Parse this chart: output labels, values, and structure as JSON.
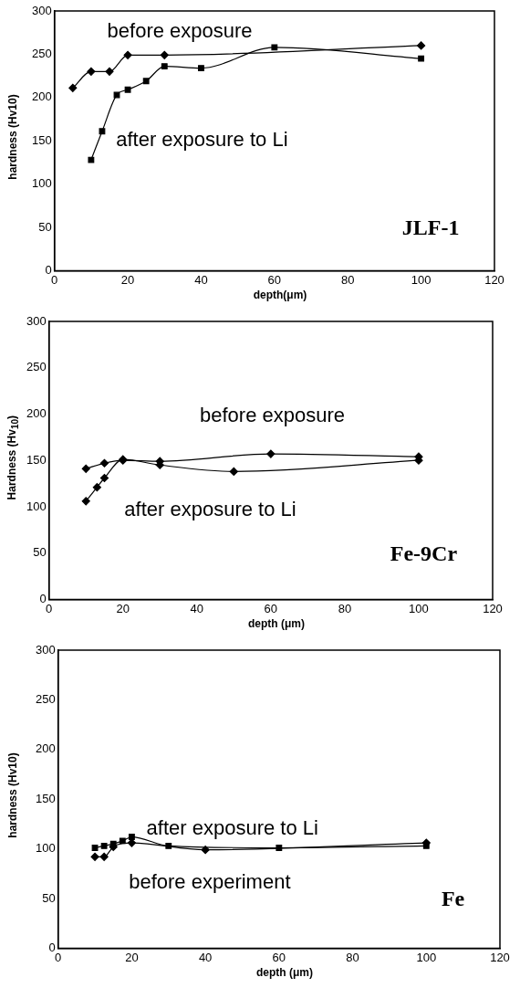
{
  "chart_data": [
    {
      "type": "line",
      "xlabel": "depth(μm)",
      "ylabel": "hardness (Hv10)",
      "xlim": [
        0,
        120
      ],
      "xticks": [
        0,
        20,
        40,
        60,
        80,
        100,
        120
      ],
      "ylim": [
        0,
        300
      ],
      "yticks": [
        0,
        50,
        100,
        150,
        200,
        250,
        300
      ],
      "grid": false,
      "legend": false,
      "annotations": [
        "JLF-1"
      ],
      "series": [
        {
          "name": "before exposure",
          "color": "#000000",
          "marker": "diamond",
          "x": [
            5,
            10,
            15,
            20,
            30,
            60,
            100
          ],
          "values": [
            211,
            230,
            230,
            249,
            249,
            null,
            260
          ]
        },
        {
          "name": "after exposure to Li",
          "color": "#000000",
          "marker": "square",
          "x": [
            10,
            13,
            17,
            20,
            25,
            30,
            40,
            60,
            100
          ],
          "values": [
            128,
            161,
            203,
            209,
            219,
            236,
            234,
            258,
            245
          ]
        }
      ]
    },
    {
      "type": "line",
      "xlabel": "depth (μm)",
      "ylabel": "Hardness (Hv$_{10}$)",
      "xlim": [
        0,
        120
      ],
      "xticks": [
        0,
        20,
        40,
        60,
        80,
        100,
        120
      ],
      "ylim": [
        0,
        300
      ],
      "yticks": [
        0,
        50,
        100,
        150,
        200,
        250,
        300
      ],
      "grid": false,
      "legend": false,
      "annotations": [
        "Fe-9Cr"
      ],
      "series": [
        {
          "name": "before exposure",
          "color": "#000000",
          "marker": "diamond",
          "x": [
            10,
            15,
            20,
            30,
            60,
            100
          ],
          "values": [
            141,
            147,
            150,
            149,
            157,
            154
          ]
        },
        {
          "name": "after exposure to Li",
          "color": "#000000",
          "marker": "diamond",
          "x": [
            10,
            13,
            15,
            20,
            30,
            50,
            100
          ],
          "values": [
            106,
            121,
            131,
            151,
            145,
            138,
            150
          ]
        }
      ]
    },
    {
      "type": "line",
      "xlabel": "depth (μm)",
      "ylabel": "hardness (Hv10)",
      "xlim": [
        0,
        120
      ],
      "xticks": [
        0,
        20,
        40,
        60,
        80,
        100,
        120
      ],
      "ylim": [
        0,
        300
      ],
      "yticks": [
        0,
        50,
        100,
        150,
        200,
        250,
        300
      ],
      "grid": false,
      "legend": false,
      "annotations": [
        "Fe"
      ],
      "series": [
        {
          "name": "after exposure to Li",
          "color": "#000000",
          "marker": "square",
          "x": [
            10,
            12.5,
            15,
            17.5,
            20,
            30,
            60,
            100
          ],
          "values": [
            101,
            103,
            105,
            108,
            112,
            103,
            101,
            103
          ]
        },
        {
          "name": "before experiment",
          "color": "#000000",
          "marker": "diamond",
          "x": [
            10,
            12.5,
            15,
            20,
            40,
            100
          ],
          "values": [
            92,
            92,
            102,
            106,
            99,
            106
          ]
        }
      ]
    }
  ]
}
